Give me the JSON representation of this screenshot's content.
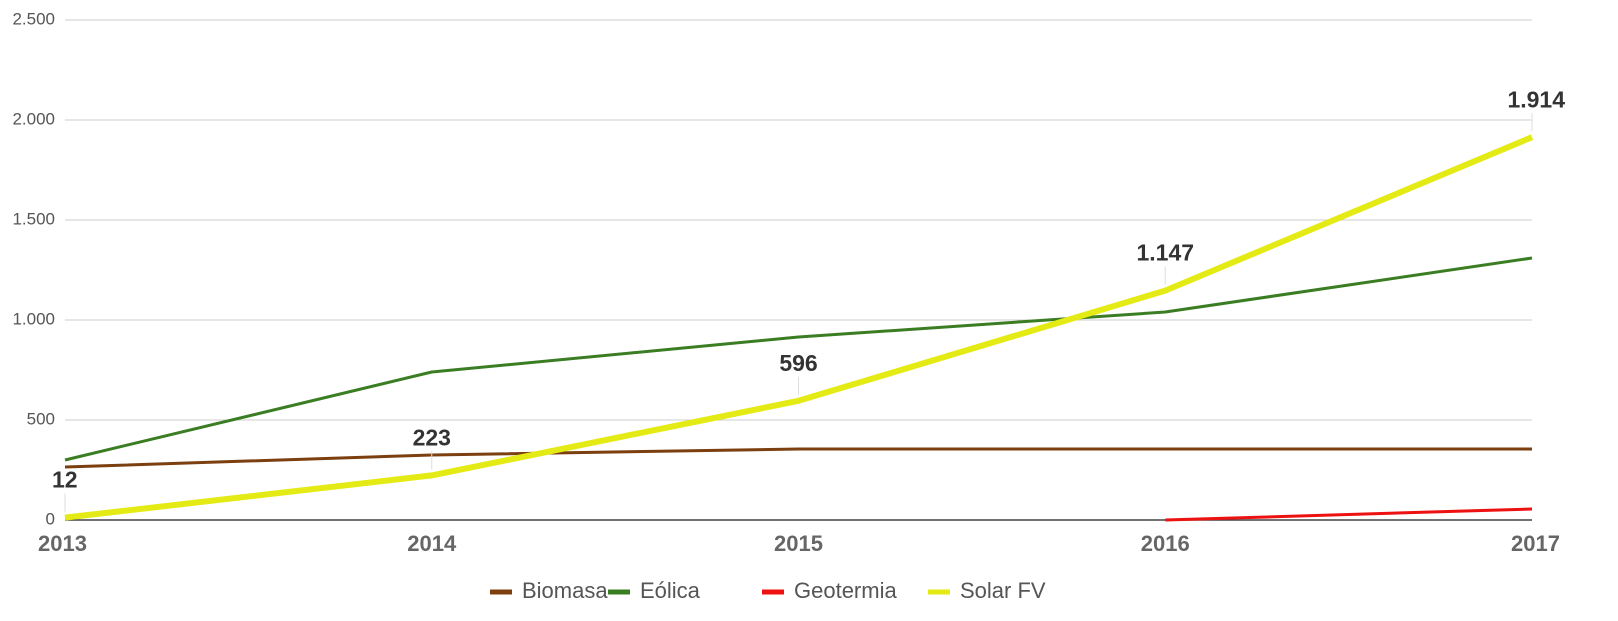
{
  "chart_data": {
    "type": "line",
    "categories": [
      "2013",
      "2014",
      "2015",
      "2016",
      "2017"
    ],
    "series": [
      {
        "name": "Biomasa",
        "color": "#7b3f10",
        "values": [
          265,
          325,
          355,
          355,
          355
        ]
      },
      {
        "name": "Eólica",
        "color": "#3a7d22",
        "values": [
          300,
          740,
          915,
          1040,
          1310
        ]
      },
      {
        "name": "Geotermia",
        "color": "#ee1111",
        "values": [
          null,
          null,
          null,
          0,
          55
        ]
      },
      {
        "name": "Solar FV",
        "color": "#e4ea14",
        "values": [
          12,
          223,
          596,
          1147,
          1914
        ],
        "value_labels": [
          "12",
          "223",
          "596",
          "1.147",
          "1.914"
        ]
      }
    ],
    "ylim": [
      0,
      2500
    ],
    "yticks": [
      0,
      500,
      {
        "value": 1000,
        "label": "1.000"
      },
      {
        "value": 1500,
        "label": "1.500"
      },
      {
        "value": 2000,
        "label": "2.000"
      },
      {
        "value": 2500,
        "label": "2.500"
      }
    ],
    "grid": true,
    "legend": "bottom"
  }
}
